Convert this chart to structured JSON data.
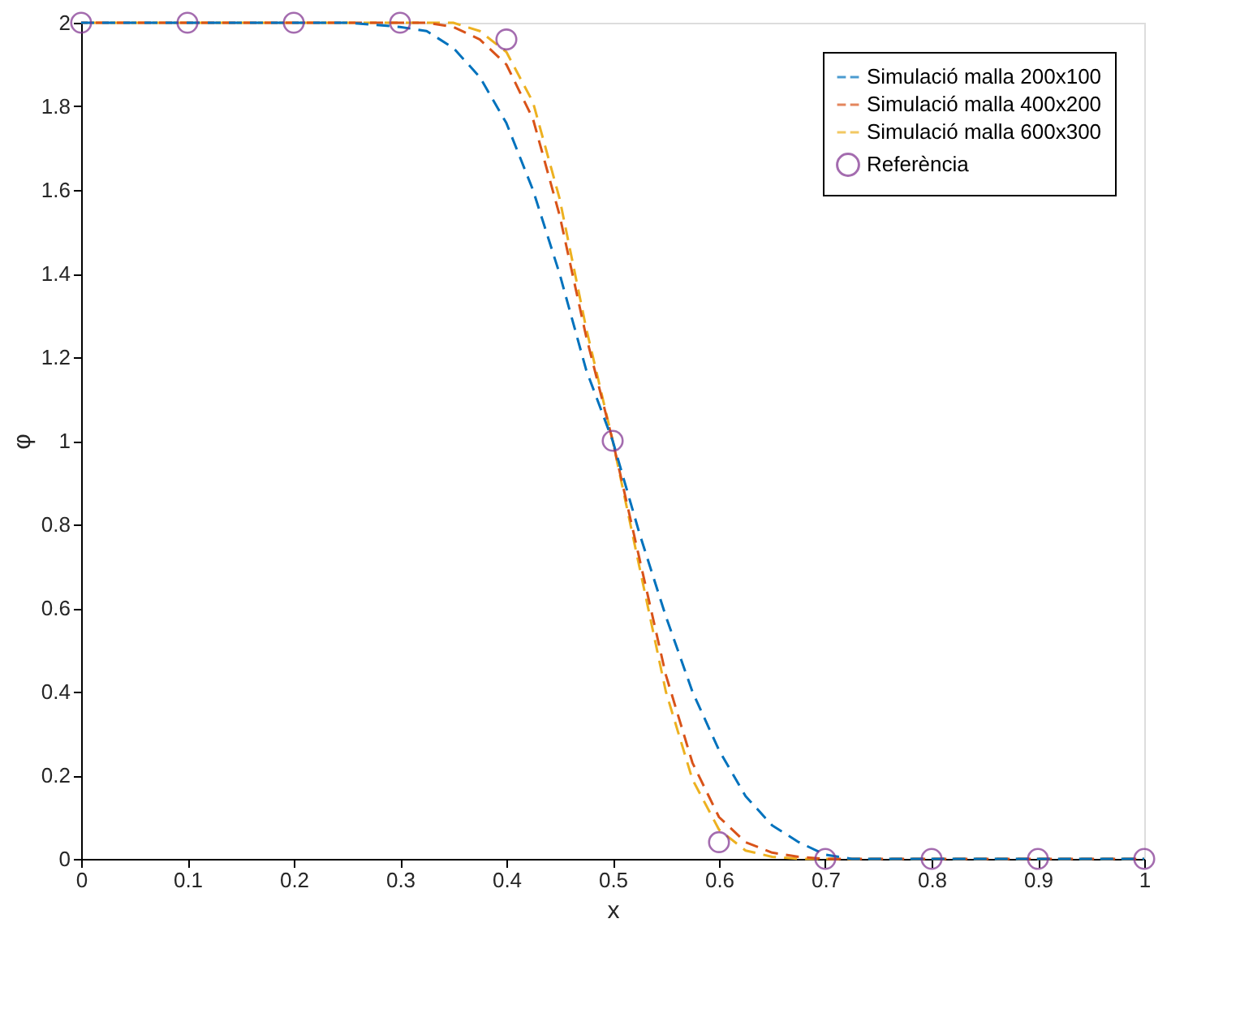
{
  "chart_data": {
    "type": "line",
    "xlabel": "x",
    "ylabel": "φ",
    "xlim": [
      0,
      1
    ],
    "ylim": [
      0,
      2
    ],
    "xticks": [
      0,
      0.1,
      0.2,
      0.3,
      0.4,
      0.5,
      0.6,
      0.7,
      0.8,
      0.9,
      1
    ],
    "yticks": [
      0,
      0.2,
      0.4,
      0.6,
      0.8,
      1,
      1.2,
      1.4,
      1.6,
      1.8,
      2
    ],
    "grid": false,
    "legend": "top right",
    "line_style": "dashed",
    "marker": "none",
    "series": [
      {
        "name": "Simulació malla 200x100",
        "color": "#0072bd",
        "x": [
          0,
          0.25,
          0.3,
          0.325,
          0.35,
          0.375,
          0.4,
          0.425,
          0.45,
          0.475,
          0.5,
          0.525,
          0.55,
          0.575,
          0.6,
          0.625,
          0.65,
          0.675,
          0.7,
          0.725,
          1
        ],
        "values": [
          2,
          2,
          1.99,
          1.98,
          1.94,
          1.87,
          1.76,
          1.6,
          1.4,
          1.17,
          1.0,
          0.78,
          0.58,
          0.4,
          0.26,
          0.15,
          0.08,
          0.04,
          0.01,
          0,
          0
        ]
      },
      {
        "name": "Simulació malla 400x200",
        "color": "#d95319",
        "x": [
          0,
          0.325,
          0.35,
          0.375,
          0.4,
          0.425,
          0.45,
          0.475,
          0.5,
          0.525,
          0.55,
          0.575,
          0.6,
          0.625,
          0.65,
          0.675,
          0.7,
          1
        ],
        "values": [
          2,
          2,
          1.99,
          1.96,
          1.9,
          1.77,
          1.54,
          1.25,
          1.0,
          0.72,
          0.44,
          0.23,
          0.1,
          0.04,
          0.015,
          0.005,
          0,
          0
        ]
      },
      {
        "name": "Simulació malla 600x300",
        "color": "#edb120",
        "x": [
          0,
          0.35,
          0.375,
          0.4,
          0.425,
          0.45,
          0.475,
          0.5,
          0.525,
          0.55,
          0.575,
          0.6,
          0.625,
          0.65,
          0.675,
          1
        ],
        "values": [
          2,
          2,
          1.98,
          1.93,
          1.81,
          1.58,
          1.27,
          1.0,
          0.7,
          0.4,
          0.19,
          0.07,
          0.02,
          0.005,
          0,
          0
        ]
      },
      {
        "name": "Referència",
        "color": "#7e2f8e",
        "type": "scatter",
        "marker": "circle",
        "x": [
          0,
          0.1,
          0.2,
          0.3,
          0.4,
          0.5,
          0.6,
          0.7,
          0.8,
          0.9,
          1
        ],
        "values": [
          2,
          2,
          2,
          2,
          1.96,
          1,
          0.04,
          0,
          0,
          0,
          0
        ]
      }
    ]
  }
}
